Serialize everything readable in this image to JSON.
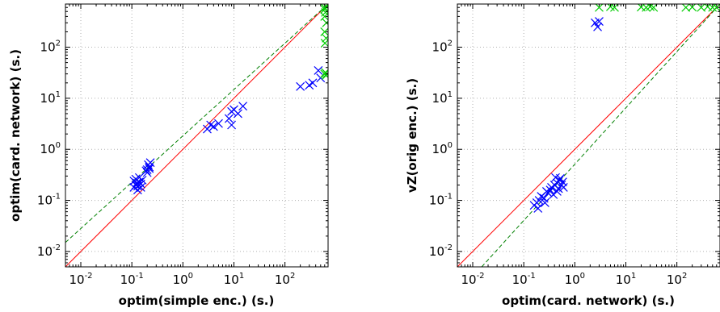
{
  "colors": {
    "identity_line": "#ff0000",
    "fit_line": "#008000",
    "series_blue": "#0000ff",
    "series_green": "#00cc00",
    "grid": "#b0b0b0"
  },
  "chart_data": [
    {
      "type": "scatter",
      "scale": "log-log",
      "xlabel": "optim(simple enc.) (s.)",
      "ylabel": "optim(card. network) (s.)",
      "xlim": [
        0.005,
        700
      ],
      "ylim": [
        0.005,
        700
      ],
      "xticks": [
        0.01,
        0.1,
        1,
        10,
        100
      ],
      "yticks": [
        0.01,
        0.1,
        1,
        10,
        100
      ],
      "tick_labels": [
        {
          "base": "10",
          "exp": "-2"
        },
        {
          "base": "10",
          "exp": "-1"
        },
        {
          "base": "10",
          "exp": "0"
        },
        {
          "base": "10",
          "exp": "1"
        },
        {
          "base": "10",
          "exp": "2"
        }
      ],
      "grid": true,
      "marker": "x",
      "identity_line": true,
      "fit_line": {
        "style": "dashed",
        "points": [
          [
            0.005,
            0.015
          ],
          [
            700,
            700
          ]
        ]
      },
      "series": [
        {
          "color": "blue",
          "points": [
            [
              0.11,
              0.18
            ],
            [
              0.12,
              0.2
            ],
            [
              0.125,
              0.22
            ],
            [
              0.13,
              0.19
            ],
            [
              0.14,
              0.23
            ],
            [
              0.12,
              0.26
            ],
            [
              0.15,
              0.21
            ],
            [
              0.13,
              0.16
            ],
            [
              0.16,
              0.25
            ],
            [
              0.11,
              0.24
            ],
            [
              0.14,
              0.28
            ],
            [
              0.15,
              0.18
            ],
            [
              0.2,
              0.4
            ],
            [
              0.21,
              0.5
            ],
            [
              0.22,
              0.45
            ],
            [
              0.19,
              0.38
            ],
            [
              0.23,
              0.55
            ],
            [
              0.2,
              0.35
            ],
            [
              0.22,
              0.42
            ],
            [
              3,
              2.5
            ],
            [
              3.5,
              3
            ],
            [
              4,
              2.8
            ],
            [
              5,
              3.2
            ],
            [
              8,
              4
            ],
            [
              9,
              5.5
            ],
            [
              10,
              6
            ],
            [
              12,
              5
            ],
            [
              15,
              7
            ],
            [
              9,
              3
            ],
            [
              200,
              17
            ],
            [
              300,
              18
            ],
            [
              350,
              20
            ],
            [
              450,
              35
            ],
            [
              500,
              25
            ]
          ]
        },
        {
          "color": "green",
          "points": [
            [
              600,
              550
            ],
            [
              620,
              480
            ],
            [
              600,
              400
            ],
            [
              650,
              300
            ],
            [
              600,
              200
            ],
            [
              640,
              150
            ],
            [
              610,
              120
            ],
            [
              600,
              30
            ],
            [
              620,
              32
            ],
            [
              640,
              28
            ],
            [
              660,
              30
            ],
            [
              600,
              600
            ],
            [
              650,
              620
            ]
          ]
        }
      ]
    },
    {
      "type": "scatter",
      "scale": "log-log",
      "xlabel": "optim(card. network) (s.)",
      "ylabel": "vZ(orig enc.) (s.)",
      "xlim": [
        0.005,
        700
      ],
      "ylim": [
        0.005,
        700
      ],
      "xticks": [
        0.01,
        0.1,
        1,
        10,
        100
      ],
      "yticks": [
        0.01,
        0.1,
        1,
        10,
        100
      ],
      "tick_labels": [
        {
          "base": "10",
          "exp": "-2"
        },
        {
          "base": "10",
          "exp": "-1"
        },
        {
          "base": "10",
          "exp": "0"
        },
        {
          "base": "10",
          "exp": "1"
        },
        {
          "base": "10",
          "exp": "2"
        }
      ],
      "grid": true,
      "marker": "x",
      "identity_line": true,
      "fit_line": {
        "style": "dashed",
        "points": [
          [
            0.015,
            0.005
          ],
          [
            700,
            700
          ]
        ]
      },
      "series": [
        {
          "color": "blue",
          "points": [
            [
              0.16,
              0.08
            ],
            [
              0.18,
              0.09
            ],
            [
              0.2,
              0.1
            ],
            [
              0.22,
              0.12
            ],
            [
              0.25,
              0.11
            ],
            [
              0.19,
              0.07
            ],
            [
              0.28,
              0.15
            ],
            [
              0.3,
              0.14
            ],
            [
              0.35,
              0.18
            ],
            [
              0.4,
              0.2
            ],
            [
              0.45,
              0.22
            ],
            [
              0.5,
              0.25
            ],
            [
              0.55,
              0.2
            ],
            [
              0.6,
              0.18
            ],
            [
              0.42,
              0.28
            ],
            [
              0.38,
              0.13
            ],
            [
              0.48,
              0.17
            ],
            [
              0.58,
              0.23
            ],
            [
              0.33,
              0.16
            ],
            [
              0.26,
              0.09
            ],
            [
              0.52,
              0.27
            ],
            [
              0.45,
              0.15
            ],
            [
              2.5,
              300
            ],
            [
              2.8,
              250
            ],
            [
              3,
              320
            ]
          ]
        },
        {
          "color": "green",
          "points": [
            [
              3,
              600
            ],
            [
              5,
              620
            ],
            [
              6,
              600
            ],
            [
              20,
              610
            ],
            [
              25,
              600
            ],
            [
              30,
              620
            ],
            [
              35,
              600
            ],
            [
              150,
              600
            ],
            [
              200,
              610
            ],
            [
              300,
              600
            ],
            [
              400,
              620
            ],
            [
              500,
              600
            ],
            [
              600,
              600
            ]
          ]
        }
      ]
    }
  ]
}
